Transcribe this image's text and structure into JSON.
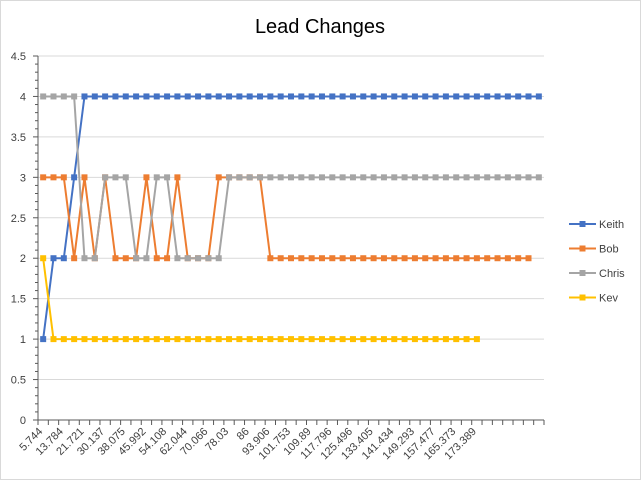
{
  "chart_data": {
    "type": "line",
    "title": "Lead Changes",
    "xlabel": "",
    "ylabel": "",
    "ylim": [
      0,
      4.5
    ],
    "y_ticks": [
      "0",
      "0.5",
      "1",
      "1.5",
      "2",
      "2.5",
      "3",
      "3.5",
      "4",
      "4.5"
    ],
    "x_tick_labels": [
      "5.744",
      "13.784",
      "21.721",
      "30.137",
      "38.075",
      "45.992",
      "54.108",
      "62.044",
      "70.066",
      "78.03",
      "86",
      "93.906",
      "101.753",
      "109.89",
      "117.796",
      "125.496",
      "133.405",
      "141.434",
      "149.293",
      "157.477",
      "165.373",
      "173.389"
    ],
    "grid": "horizontal",
    "legend_position": "right",
    "series": [
      {
        "name": "Keith",
        "color": "#4472C4",
        "values": [
          1,
          2,
          2,
          3,
          4,
          4,
          4,
          4,
          4,
          4,
          4,
          4,
          4,
          4,
          4,
          4,
          4,
          4,
          4,
          4,
          4,
          4,
          4,
          4,
          4,
          4,
          4,
          4,
          4,
          4,
          4,
          4,
          4,
          4,
          4,
          4,
          4,
          4,
          4,
          4,
          4,
          4,
          4,
          4,
          4,
          4,
          4,
          4,
          4
        ]
      },
      {
        "name": "Bob",
        "color": "#ED7D31",
        "values": [
          3,
          3,
          3,
          2,
          3,
          2,
          3,
          2,
          2,
          2,
          3,
          2,
          2,
          3,
          2,
          2,
          2,
          3,
          3,
          3,
          3,
          3,
          2,
          2,
          2,
          2,
          2,
          2,
          2,
          2,
          2,
          2,
          2,
          2,
          2,
          2,
          2,
          2,
          2,
          2,
          2,
          2,
          2,
          2,
          2,
          2,
          2,
          2
        ]
      },
      {
        "name": "Chris",
        "color": "#A5A5A5",
        "values": [
          4,
          4,
          4,
          4,
          2,
          2,
          3,
          3,
          3,
          2,
          2,
          3,
          3,
          2,
          2,
          2,
          2,
          2,
          3,
          3,
          3,
          3,
          3,
          3,
          3,
          3,
          3,
          3,
          3,
          3,
          3,
          3,
          3,
          3,
          3,
          3,
          3,
          3,
          3,
          3,
          3,
          3,
          3,
          3,
          3,
          3,
          3,
          3,
          3
        ]
      },
      {
        "name": "Kev",
        "color": "#FFC000",
        "values": [
          2,
          1,
          1,
          1,
          1,
          1,
          1,
          1,
          1,
          1,
          1,
          1,
          1,
          1,
          1,
          1,
          1,
          1,
          1,
          1,
          1,
          1,
          1,
          1,
          1,
          1,
          1,
          1,
          1,
          1,
          1,
          1,
          1,
          1,
          1,
          1,
          1,
          1,
          1,
          1,
          1,
          1,
          1
        ]
      }
    ]
  }
}
